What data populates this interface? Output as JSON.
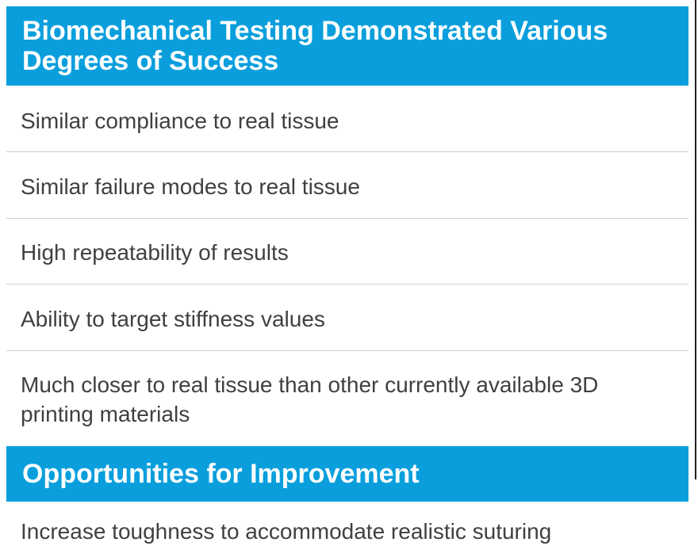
{
  "sections": [
    {
      "title": "Biomechanical Testing Demonstrated Various Degrees of Success",
      "items": [
        "Similar compliance to real tissue",
        "Similar failure modes to real tissue",
        "High repeatability of results",
        "Ability to target stiffness values",
        "Much closer to real tissue than other currently available 3D printing materials"
      ]
    },
    {
      "title": "Opportunities for Improvement",
      "items": [
        "Increase toughness to accommodate realistic suturing"
      ]
    }
  ]
}
